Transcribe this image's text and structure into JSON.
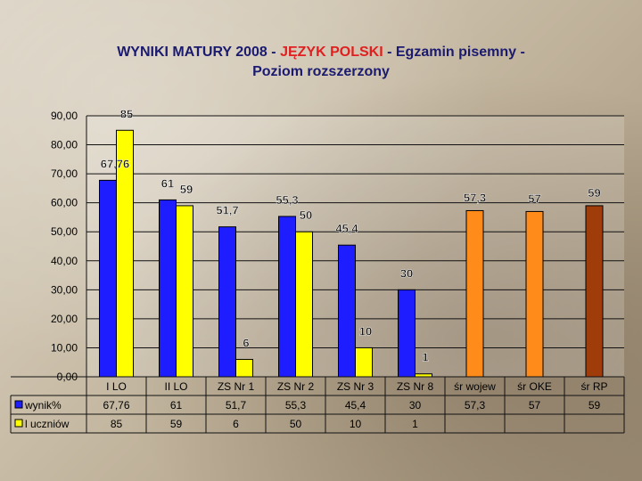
{
  "title": {
    "part1": "WYNIKI MATURY 2008 -",
    "highlight": "JĘZYK POLSKI",
    "part2": "- Egzamin pisemny -",
    "line2": "Poziom rozszerzony"
  },
  "colors": {
    "blue": "#1d1dff",
    "yellow": "#ffff00",
    "orange": "#ff8c1a",
    "brown": "#a03c0a"
  },
  "chart_data": {
    "type": "bar",
    "ylim": [
      0,
      90
    ],
    "yticks": [
      "0,00",
      "10,00",
      "20,00",
      "30,00",
      "40,00",
      "50,00",
      "60,00",
      "70,00",
      "80,00",
      "90,00"
    ],
    "grid": true,
    "categories": [
      "I LO",
      "II LO",
      "ZS Nr 1",
      "ZS Nr 2",
      "ZS Nr 3",
      "ZS Nr 8",
      "śr  wojew",
      "śr  OKE",
      "śr  RP"
    ],
    "series": [
      {
        "name": "wynik%",
        "values": [
          67.76,
          61,
          51.7,
          55.3,
          45.4,
          30,
          null,
          null,
          null
        ],
        "labels": [
          "67,76",
          "61",
          "51,7",
          "55,3",
          "45,4",
          "30",
          "",
          "",
          ""
        ]
      },
      {
        "name": "l uczniów",
        "values": [
          85,
          59,
          6,
          50,
          10,
          1,
          null,
          null,
          null
        ],
        "labels": [
          "85",
          "59",
          "6",
          "50",
          "10",
          "1",
          "",
          "",
          ""
        ]
      }
    ],
    "averages": {
      "values": [
        null,
        null,
        null,
        null,
        null,
        null,
        57.3,
        57,
        59
      ],
      "labels": [
        "",
        "",
        "",
        "",
        "",
        "",
        "57,3",
        "57",
        "59"
      ],
      "bar_colors": [
        "",
        "",
        "",
        "",
        "",
        "",
        "#ff8c1a",
        "#ff8c1a",
        "#a03c0a"
      ]
    },
    "table": {
      "row1_label": "wynik%",
      "row1": [
        "67,76",
        "61",
        "51,7",
        "55,3",
        "45,4",
        "30",
        "57,3",
        "57",
        "59"
      ],
      "row2_label": "l uczniów",
      "row2": [
        "85",
        "59",
        "6",
        "50",
        "10",
        "1",
        "",
        "",
        ""
      ]
    }
  }
}
